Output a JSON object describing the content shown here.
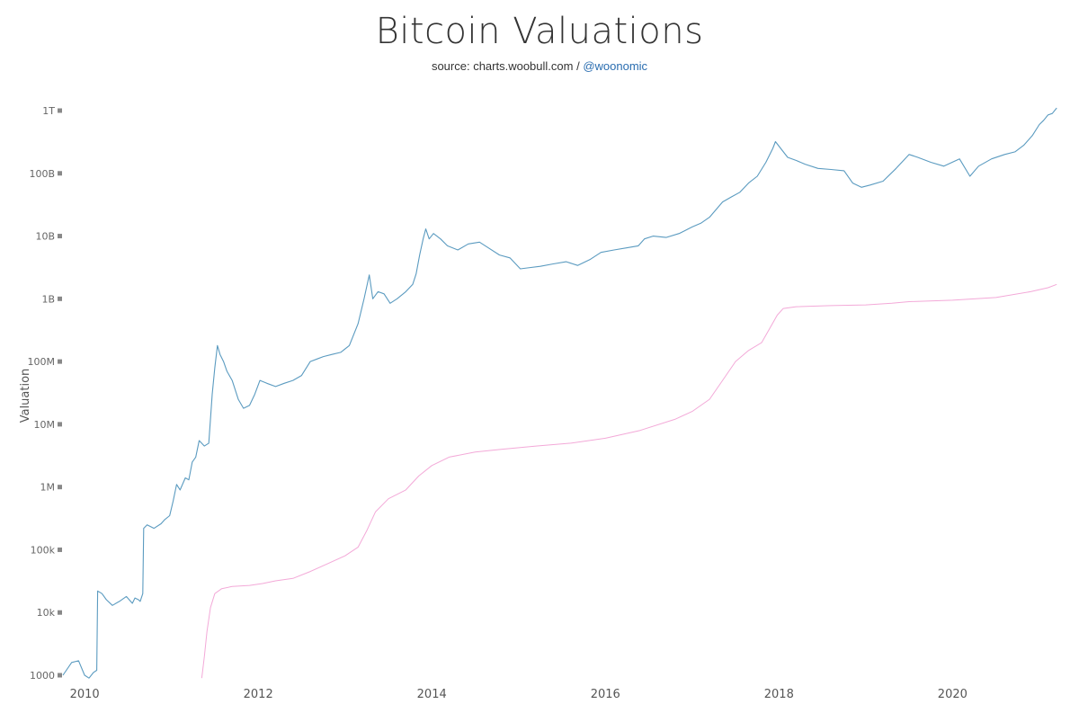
{
  "title": "Bitcoin Valuations",
  "subtitle": {
    "text": "source: charts.woobull.com / ",
    "handle": "@woonomic"
  },
  "chart_data": {
    "type": "line",
    "title": "Bitcoin Valuations",
    "xlabel": "",
    "ylabel": "Valuation",
    "yscale": "log",
    "ylim": [
      900,
      1300000000000
    ],
    "xlim": [
      2009.75,
      2021.25
    ],
    "grid": false,
    "legend": "none",
    "x_ticks": [
      2010,
      2012,
      2014,
      2016,
      2018,
      2020
    ],
    "x_tick_labels": [
      "2010",
      "2012",
      "2014",
      "2016",
      "2018",
      "2020"
    ],
    "y_ticks": [
      1000,
      10000,
      100000,
      1000000,
      10000000,
      100000000,
      1000000000,
      10000000000,
      100000000000,
      1000000000000
    ],
    "y_tick_labels": [
      "1000",
      "10k",
      "100k",
      "1M",
      "10M",
      "100M",
      "1B",
      "10B",
      "100B",
      "1T"
    ],
    "series": [
      {
        "color": "#5b9bc0",
        "points": [
          [
            2009.75,
            1000
          ],
          [
            2009.85,
            1600
          ],
          [
            2009.93,
            1700
          ],
          [
            2010.0,
            1000
          ],
          [
            2010.05,
            900
          ],
          [
            2010.1,
            1100
          ],
          [
            2010.14,
            1200
          ],
          [
            2010.15,
            22000
          ],
          [
            2010.2,
            20000
          ],
          [
            2010.25,
            16000
          ],
          [
            2010.32,
            13000
          ],
          [
            2010.4,
            15000
          ],
          [
            2010.48,
            18000
          ],
          [
            2010.55,
            14000
          ],
          [
            2010.58,
            17000
          ],
          [
            2010.62,
            16000
          ],
          [
            2010.64,
            15000
          ],
          [
            2010.67,
            20000
          ],
          [
            2010.68,
            220000
          ],
          [
            2010.72,
            250000
          ],
          [
            2010.8,
            220000
          ],
          [
            2010.88,
            260000
          ],
          [
            2010.92,
            300000
          ],
          [
            2010.98,
            350000
          ],
          [
            2011.02,
            600000
          ],
          [
            2011.06,
            1100000
          ],
          [
            2011.1,
            900000
          ],
          [
            2011.16,
            1400000
          ],
          [
            2011.2,
            1300000
          ],
          [
            2011.24,
            2500000
          ],
          [
            2011.28,
            3000000
          ],
          [
            2011.32,
            5500000
          ],
          [
            2011.38,
            4500000
          ],
          [
            2011.43,
            5000000
          ],
          [
            2011.47,
            30000000
          ],
          [
            2011.5,
            80000000
          ],
          [
            2011.53,
            180000000
          ],
          [
            2011.56,
            130000000
          ],
          [
            2011.6,
            100000000
          ],
          [
            2011.64,
            70000000
          ],
          [
            2011.7,
            50000000
          ],
          [
            2011.77,
            25000000
          ],
          [
            2011.83,
            18000000
          ],
          [
            2011.9,
            20000000
          ],
          [
            2011.96,
            30000000
          ],
          [
            2012.02,
            50000000
          ],
          [
            2012.1,
            45000000
          ],
          [
            2012.2,
            40000000
          ],
          [
            2012.3,
            45000000
          ],
          [
            2012.4,
            50000000
          ],
          [
            2012.5,
            60000000
          ],
          [
            2012.6,
            100000000
          ],
          [
            2012.68,
            110000000
          ],
          [
            2012.75,
            120000000
          ],
          [
            2012.85,
            130000000
          ],
          [
            2012.95,
            140000000
          ],
          [
            2013.05,
            180000000
          ],
          [
            2013.15,
            400000000
          ],
          [
            2013.22,
            1000000000
          ],
          [
            2013.28,
            2400000000
          ],
          [
            2013.32,
            1000000000
          ],
          [
            2013.38,
            1300000000
          ],
          [
            2013.45,
            1200000000
          ],
          [
            2013.52,
            850000000
          ],
          [
            2013.6,
            1000000000
          ],
          [
            2013.7,
            1300000000
          ],
          [
            2013.78,
            1700000000
          ],
          [
            2013.82,
            2500000000
          ],
          [
            2013.86,
            5000000000
          ],
          [
            2013.9,
            9000000000
          ],
          [
            2013.93,
            13000000000
          ],
          [
            2013.97,
            9000000000
          ],
          [
            2014.02,
            11000000000
          ],
          [
            2014.1,
            9000000000
          ],
          [
            2014.18,
            7000000000
          ],
          [
            2014.3,
            6000000000
          ],
          [
            2014.42,
            7500000000
          ],
          [
            2014.55,
            8000000000
          ],
          [
            2014.65,
            6500000000
          ],
          [
            2014.78,
            5000000000
          ],
          [
            2014.9,
            4500000000
          ],
          [
            2015.02,
            3000000000
          ],
          [
            2015.1,
            3100000000
          ],
          [
            2015.25,
            3300000000
          ],
          [
            2015.4,
            3600000000
          ],
          [
            2015.55,
            3900000000
          ],
          [
            2015.68,
            3400000000
          ],
          [
            2015.82,
            4200000000
          ],
          [
            2015.95,
            5500000000
          ],
          [
            2016.1,
            6000000000
          ],
          [
            2016.25,
            6500000000
          ],
          [
            2016.38,
            7000000000
          ],
          [
            2016.45,
            9000000000
          ],
          [
            2016.55,
            10000000000
          ],
          [
            2016.7,
            9500000000
          ],
          [
            2016.85,
            11000000000
          ],
          [
            2017.0,
            14000000000
          ],
          [
            2017.1,
            16000000000
          ],
          [
            2017.2,
            20000000000
          ],
          [
            2017.35,
            35000000000
          ],
          [
            2017.45,
            42000000000
          ],
          [
            2017.55,
            50000000000
          ],
          [
            2017.65,
            70000000000
          ],
          [
            2017.75,
            90000000000
          ],
          [
            2017.85,
            150000000000
          ],
          [
            2017.93,
            250000000000
          ],
          [
            2017.96,
            320000000000
          ],
          [
            2018.02,
            250000000000
          ],
          [
            2018.1,
            180000000000
          ],
          [
            2018.2,
            160000000000
          ],
          [
            2018.3,
            140000000000
          ],
          [
            2018.45,
            120000000000
          ],
          [
            2018.6,
            115000000000
          ],
          [
            2018.75,
            110000000000
          ],
          [
            2018.85,
            70000000000
          ],
          [
            2018.95,
            60000000000
          ],
          [
            2019.05,
            65000000000
          ],
          [
            2019.2,
            75000000000
          ],
          [
            2019.35,
            120000000000
          ],
          [
            2019.5,
            200000000000
          ],
          [
            2019.6,
            180000000000
          ],
          [
            2019.75,
            150000000000
          ],
          [
            2019.9,
            130000000000
          ],
          [
            2020.08,
            170000000000
          ],
          [
            2020.2,
            90000000000
          ],
          [
            2020.3,
            130000000000
          ],
          [
            2020.45,
            170000000000
          ],
          [
            2020.6,
            200000000000
          ],
          [
            2020.72,
            220000000000
          ],
          [
            2020.82,
            280000000000
          ],
          [
            2020.92,
            400000000000
          ],
          [
            2021.0,
            600000000000
          ],
          [
            2021.05,
            700000000000
          ],
          [
            2021.1,
            850000000000
          ],
          [
            2021.15,
            900000000000
          ],
          [
            2021.2,
            1100000000000
          ]
        ]
      },
      {
        "color": "#f3a9d8",
        "points": [
          [
            2011.35,
            900
          ],
          [
            2011.38,
            2000
          ],
          [
            2011.41,
            5000
          ],
          [
            2011.45,
            12000
          ],
          [
            2011.5,
            20000
          ],
          [
            2011.58,
            24000
          ],
          [
            2011.7,
            26000
          ],
          [
            2011.9,
            27000
          ],
          [
            2012.05,
            29000
          ],
          [
            2012.2,
            32000
          ],
          [
            2012.4,
            35000
          ],
          [
            2012.6,
            45000
          ],
          [
            2012.8,
            60000
          ],
          [
            2013.0,
            80000
          ],
          [
            2013.15,
            110000
          ],
          [
            2013.25,
            200000
          ],
          [
            2013.35,
            400000
          ],
          [
            2013.5,
            650000
          ],
          [
            2013.7,
            900000
          ],
          [
            2013.85,
            1500000
          ],
          [
            2014.0,
            2200000
          ],
          [
            2014.2,
            3000000
          ],
          [
            2014.5,
            3600000
          ],
          [
            2014.8,
            4000000
          ],
          [
            2015.2,
            4500000
          ],
          [
            2015.6,
            5000000
          ],
          [
            2016.0,
            6000000
          ],
          [
            2016.4,
            8000000
          ],
          [
            2016.8,
            12000000
          ],
          [
            2017.0,
            16000000
          ],
          [
            2017.2,
            25000000
          ],
          [
            2017.35,
            50000000
          ],
          [
            2017.5,
            100000000
          ],
          [
            2017.65,
            150000000
          ],
          [
            2017.8,
            200000000
          ],
          [
            2017.9,
            350000000
          ],
          [
            2017.98,
            550000000
          ],
          [
            2018.05,
            700000000
          ],
          [
            2018.2,
            750000000
          ],
          [
            2018.6,
            780000000
          ],
          [
            2019.0,
            800000000
          ],
          [
            2019.3,
            850000000
          ],
          [
            2019.5,
            900000000
          ],
          [
            2020.0,
            950000000
          ],
          [
            2020.5,
            1050000000
          ],
          [
            2020.9,
            1300000000
          ],
          [
            2021.1,
            1500000000
          ],
          [
            2021.2,
            1700000000
          ]
        ]
      }
    ]
  }
}
